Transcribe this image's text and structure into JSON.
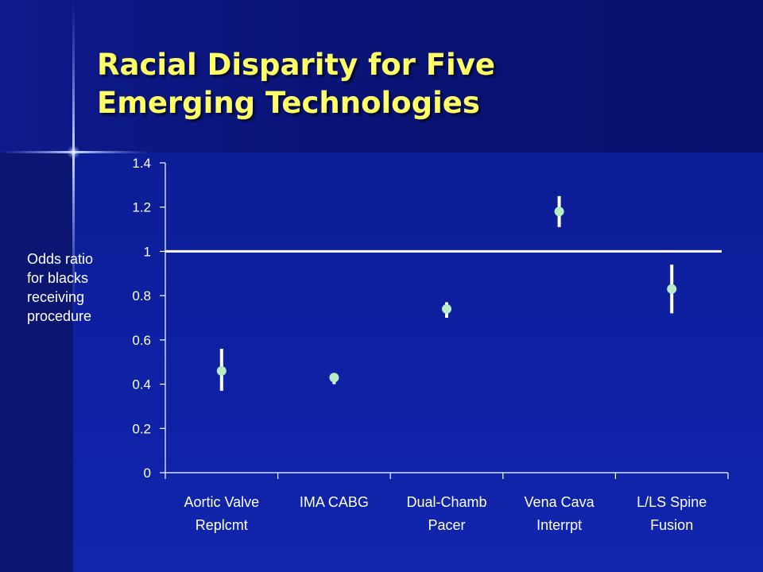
{
  "title": {
    "line1": "Racial Disparity for Five",
    "line2": "Emerging Technologies"
  },
  "colors": {
    "title": "#ffff66",
    "marker": "#b8ecc4",
    "errorbar": "#ffffff",
    "reference_line": "#ffffff",
    "text": "#ffffff"
  },
  "chart_data": {
    "type": "scatter",
    "title": "Racial Disparity for Five Emerging Technologies",
    "ylabel": [
      "Odds ratio",
      "for blacks",
      "receiving",
      "procedure"
    ],
    "xlabel": "",
    "ylim": [
      0,
      1.4
    ],
    "yticks": [
      "0",
      "0.2",
      "0.4",
      "0.6",
      "0.8",
      "1",
      "1.2",
      "1.4"
    ],
    "ytick_values": [
      0,
      0.2,
      0.4,
      0.6,
      0.8,
      1,
      1.2,
      1.4
    ],
    "reference_line": 1,
    "categories": [
      [
        "Aortic Valve",
        "Replcmt"
      ],
      [
        "IMA CABG"
      ],
      [
        "Dual-Chamb",
        "Pacer"
      ],
      [
        "Vena Cava",
        "Interrpt"
      ],
      [
        "L/LS Spine",
        "Fusion"
      ]
    ],
    "values": [
      0.46,
      0.43,
      0.74,
      1.18,
      0.83
    ],
    "ci_low": [
      0.37,
      0.4,
      0.7,
      1.11,
      0.72
    ],
    "ci_high": [
      0.56,
      0.45,
      0.77,
      1.25,
      0.94
    ],
    "grid": false,
    "legend": "none"
  }
}
